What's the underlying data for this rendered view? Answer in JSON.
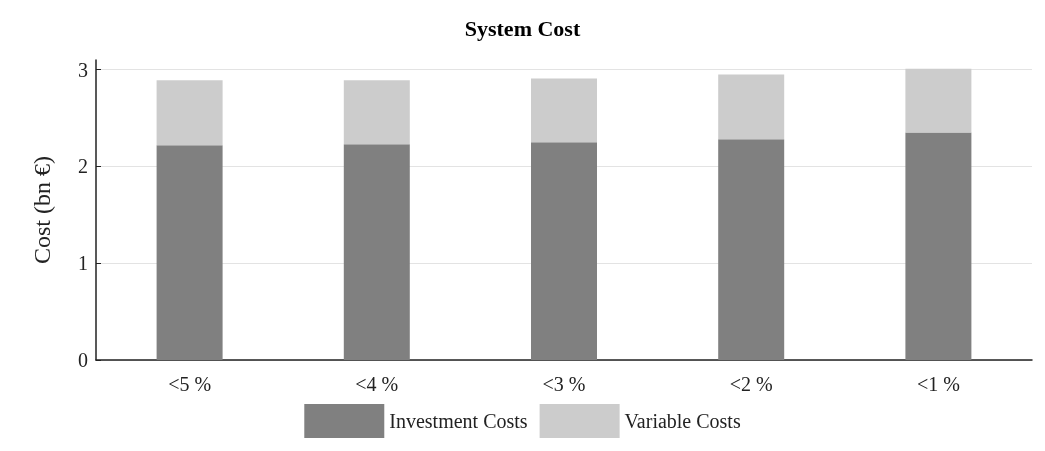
{
  "chart_data": {
    "type": "bar",
    "title": "System Cost",
    "ylabel": "Cost (bn €)",
    "categories": [
      "<5 %",
      "<4 %",
      "<3 %",
      "<2 %",
      "<1 %"
    ],
    "stacked": true,
    "series": [
      {
        "name": "Investment Costs",
        "color": "#808080",
        "values": [
          2.22,
          2.23,
          2.25,
          2.28,
          2.35
        ]
      },
      {
        "name": "Variable Costs",
        "color": "#cccccc",
        "values": [
          0.67,
          0.66,
          0.66,
          0.67,
          0.66
        ]
      }
    ],
    "ylim": [
      0,
      3.1
    ],
    "yticks": [
      0,
      1,
      2,
      3
    ],
    "grid": "y",
    "legend": "bottom"
  }
}
